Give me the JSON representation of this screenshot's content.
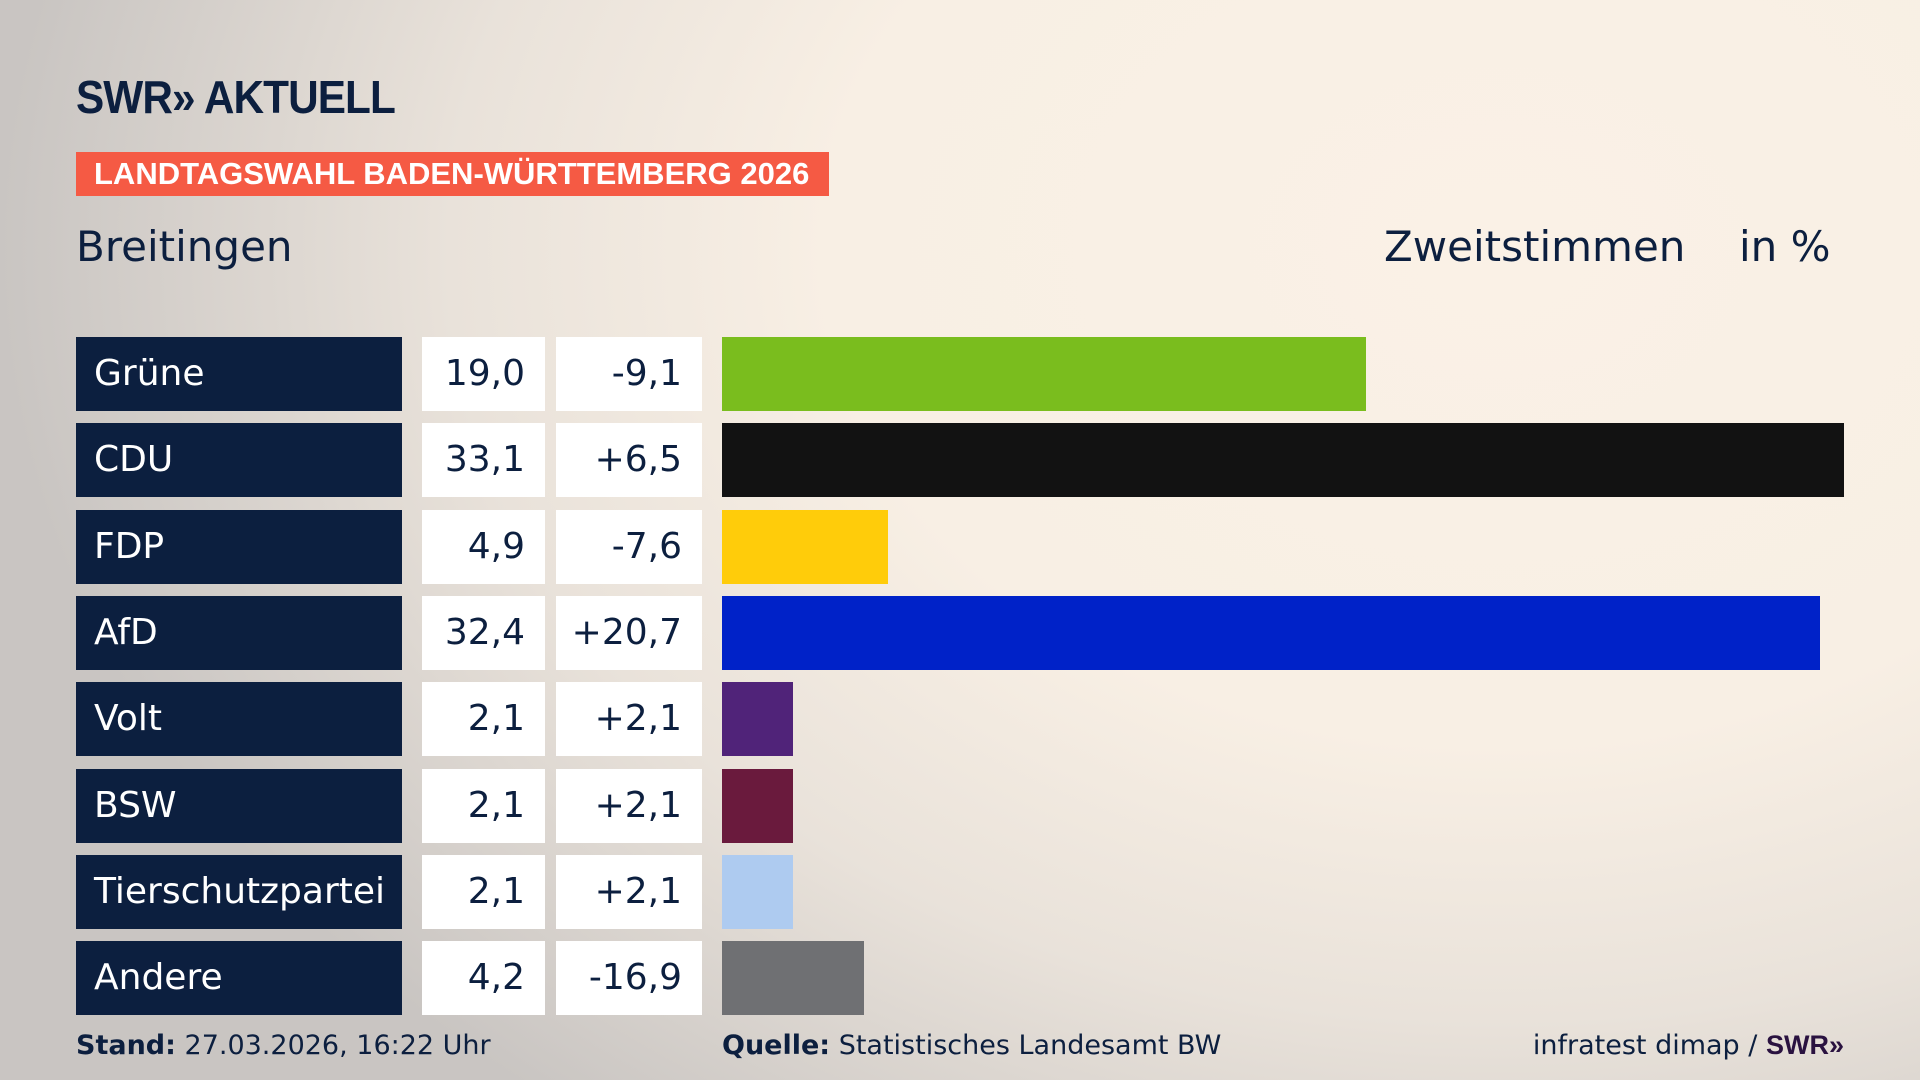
{
  "header": {
    "logo": "SWR» AKTUELL",
    "banner": "LANDTAGSWAHL BADEN-WÜRTTEMBERG 2026",
    "place": "Breitingen",
    "subtitle": "Zweitstimmen",
    "unit": "in %"
  },
  "chart_data": {
    "type": "bar",
    "orientation": "horizontal",
    "categories": [
      "Grüne",
      "CDU",
      "FDP",
      "AfD",
      "Volt",
      "BSW",
      "Tierschutzpartei",
      "Andere"
    ],
    "values": [
      19.0,
      33.1,
      4.9,
      32.4,
      2.1,
      2.1,
      2.1,
      4.2
    ],
    "value_labels": [
      "19,0",
      "33,1",
      "4,9",
      "32,4",
      "2,1",
      "2,1",
      "2,1",
      "4,2"
    ],
    "change_labels": [
      "-9,1",
      "+6,5",
      "-7,6",
      "+20,7",
      "+2,1",
      "+2,1",
      "+2,1",
      "-16,9"
    ],
    "changes": [
      -9.1,
      6.5,
      -7.6,
      20.7,
      2.1,
      2.1,
      2.1,
      -16.9
    ],
    "colors": [
      "#7abd1e",
      "#121212",
      "#ffcc0a",
      "#0022c8",
      "#502379",
      "#6a1a3d",
      "#aecbf0",
      "#6f7073"
    ],
    "xlim": [
      0,
      33.1
    ]
  },
  "footer": {
    "stand_label": "Stand:",
    "stand_value": "27.03.2026, 16:22 Uhr",
    "source_label": "Quelle:",
    "source_value": "Statistisches Landesamt BW",
    "credit": "infratest dimap /",
    "credit_logo": "SWR»"
  }
}
